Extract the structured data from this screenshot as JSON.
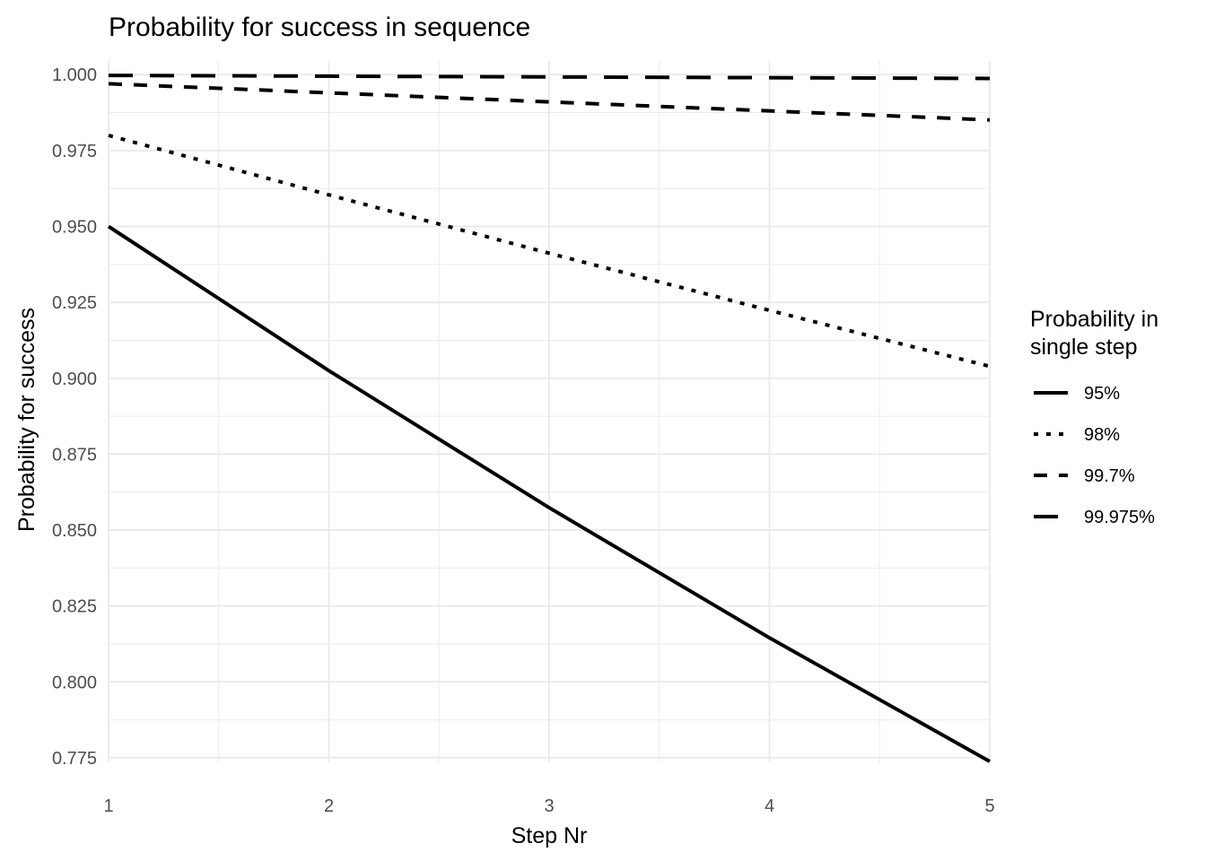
{
  "chart_data": {
    "type": "line",
    "title": "Probability for success in sequence",
    "xlabel": "Step Nr",
    "ylabel": "Probability for success",
    "x": [
      1,
      2,
      3,
      4,
      5
    ],
    "xlim": [
      1,
      5
    ],
    "ylim": [
      0.7735,
      1.0045
    ],
    "x_ticks": [
      1,
      2,
      3,
      4,
      5
    ],
    "y_ticks": [
      0.775,
      0.8,
      0.825,
      0.85,
      0.875,
      0.9,
      0.925,
      0.95,
      0.975,
      1.0
    ],
    "y_tick_labels": [
      "0.775",
      "0.800",
      "0.825",
      "0.850",
      "0.875",
      "0.900",
      "0.925",
      "0.950",
      "0.975",
      "1.000"
    ],
    "grid": true,
    "legend": {
      "title_lines": [
        "Probability in",
        "single step"
      ],
      "position": "right"
    },
    "series": [
      {
        "name": "95%",
        "linetype": "solid",
        "values": [
          0.95,
          0.9025,
          0.857375,
          0.81450625,
          0.7737809375
        ]
      },
      {
        "name": "98%",
        "linetype": "dotted",
        "values": [
          0.98,
          0.9604,
          0.941192,
          0.92236816,
          0.9039207968
        ]
      },
      {
        "name": "99.7%",
        "linetype": "dashed",
        "values": [
          0.997,
          0.994009,
          0.991027,
          0.988054,
          0.98509
        ]
      },
      {
        "name": "99.975%",
        "linetype": "longdash",
        "values": [
          0.99975,
          0.9995,
          0.99925,
          0.999,
          0.99875
        ]
      }
    ],
    "colors": {
      "line": "#000000",
      "grid": "#ebebeb",
      "tick_text": "#4d4d4d"
    }
  }
}
